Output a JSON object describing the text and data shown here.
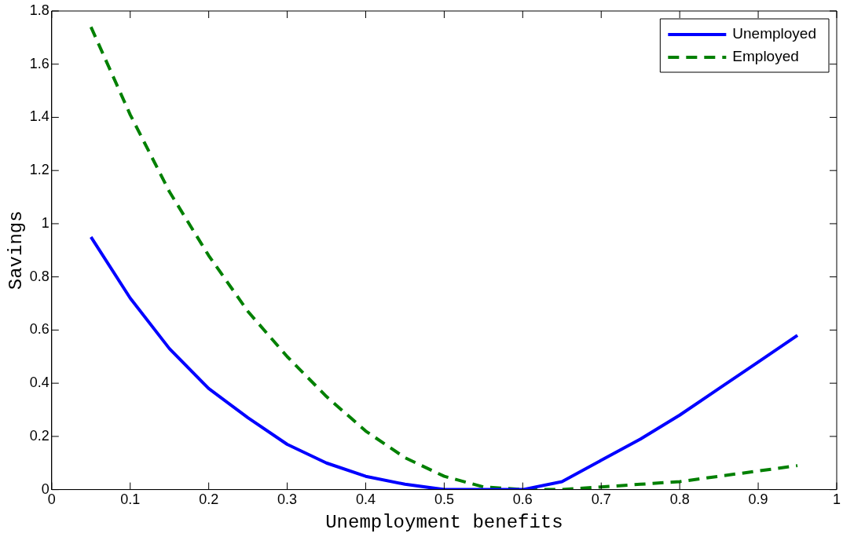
{
  "chart_data": {
    "type": "line",
    "xlabel": "Unemployment benefits",
    "ylabel": "Savings",
    "x": [
      0.05,
      0.1,
      0.15,
      0.2,
      0.25,
      0.3,
      0.35,
      0.4,
      0.45,
      0.5,
      0.55,
      0.6,
      0.65,
      0.7,
      0.75,
      0.8,
      0.85,
      0.9,
      0.95
    ],
    "series": [
      {
        "name": "Unemployed",
        "color": "#0000ff",
        "line_style": "solid",
        "values": [
          0.95,
          0.72,
          0.53,
          0.38,
          0.27,
          0.17,
          0.1,
          0.05,
          0.02,
          0,
          0,
          0,
          0.03,
          0.11,
          0.19,
          0.28,
          0.38,
          0.48,
          0.58
        ]
      },
      {
        "name": "Employed",
        "color": "#008000",
        "line_style": "dashed",
        "values": [
          1.74,
          1.41,
          1.12,
          0.88,
          0.67,
          0.5,
          0.35,
          0.22,
          0.12,
          0.05,
          0.01,
          0,
          0,
          0.01,
          0.02,
          0.03,
          0.05,
          0.07,
          0.09
        ]
      }
    ],
    "xlim": [
      0,
      1
    ],
    "xticks": [
      0,
      0.1,
      0.2,
      0.3,
      0.4,
      0.5,
      0.6,
      0.7,
      0.8,
      0.9,
      1
    ],
    "ylim": [
      0,
      1.8
    ],
    "yticks": [
      0,
      0.2,
      0.4,
      0.6,
      0.8,
      1,
      1.2,
      1.4,
      1.6,
      1.8
    ],
    "grid": false,
    "legend": "top right",
    "marker": "none"
  }
}
